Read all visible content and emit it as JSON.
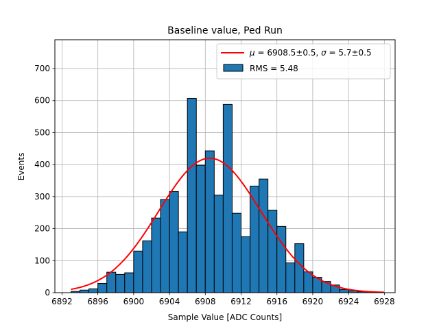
{
  "chart_data": {
    "type": "bar",
    "title": "Baseline value, Ped Run",
    "xlabel": "Sample Value [ADC Counts]",
    "ylabel": "Events",
    "xlim": [
      6891.2,
      6929.2
    ],
    "ylim": [
      0,
      790
    ],
    "x_ticks": [
      6892,
      6896,
      6900,
      6904,
      6908,
      6912,
      6916,
      6920,
      6924,
      6928
    ],
    "y_ticks": [
      0,
      100,
      200,
      300,
      400,
      500,
      600,
      700
    ],
    "grid": true,
    "legend_position": "top-right",
    "histogram": {
      "name": "RMS = 5.48",
      "color": "#1f77b4",
      "edgecolor": "#000000",
      "bin_start": 6893,
      "bin_width": 1,
      "values": [
        4,
        8,
        12,
        29,
        64,
        57,
        62,
        130,
        162,
        233,
        291,
        316,
        190,
        607,
        398,
        443,
        305,
        588,
        248,
        175,
        333,
        355,
        258,
        207,
        93,
        153,
        65,
        48,
        35,
        24,
        10,
        6,
        3,
        1,
        0
      ]
    },
    "fit": {
      "name_mu_label": "μ",
      "name_mu_value": " = 6908.5±0.5, ",
      "name_sigma_label": "σ",
      "name_sigma_value": " = 5.7±0.5",
      "color": "#ff0000",
      "mu": 6908.5,
      "sigma": 5.7,
      "amplitude": 420,
      "x_range": [
        6893,
        6928
      ]
    }
  }
}
